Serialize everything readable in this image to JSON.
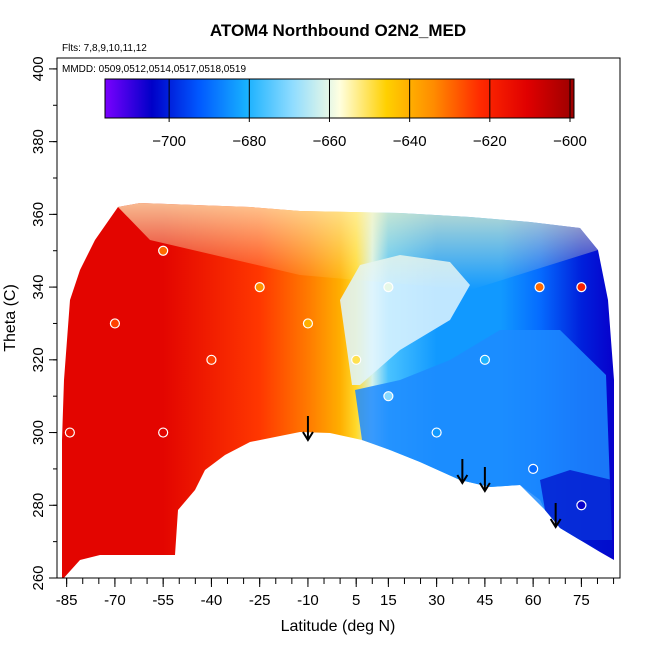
{
  "chart_data": {
    "type": "heatmap",
    "title": "ATOM4 Northbound O2N2_MED",
    "flights_note": "Flts: 7,8,9,10,11,12",
    "dates_note": "MMDD: 0509,0512,0514,0517,0518,0519",
    "xlabel": "Latitude (deg N)",
    "ylabel": "Theta (C)",
    "xlim": [
      -88,
      87
    ],
    "ylim": [
      260,
      403
    ],
    "xticks": [
      -85,
      -70,
      -55,
      -40,
      -25,
      -10,
      5,
      15,
      30,
      45,
      60,
      75
    ],
    "yticks": [
      260,
      280,
      300,
      320,
      340,
      360,
      380,
      400
    ],
    "colorbar": {
      "range": [
        -716,
        -599
      ],
      "ticks": [
        -700,
        -680,
        -660,
        -640,
        -620,
        -600
      ],
      "colors": [
        "#7a00ff",
        "#0000c8",
        "#0058ff",
        "#17b0ff",
        "#8fdcff",
        "#ffffe0",
        "#ffd000",
        "#ff8c00",
        "#ff2a00",
        "#e00000",
        "#9c0000"
      ]
    },
    "field_samples": [
      {
        "lat": -84,
        "theta": 300,
        "value": -616
      },
      {
        "lat": -70,
        "theta": 330,
        "value": -625
      },
      {
        "lat": -55,
        "theta": 300,
        "value": -612
      },
      {
        "lat": -55,
        "theta": 350,
        "value": -630
      },
      {
        "lat": -40,
        "theta": 320,
        "value": -625
      },
      {
        "lat": -25,
        "theta": 340,
        "value": -635
      },
      {
        "lat": -10,
        "theta": 330,
        "value": -640
      },
      {
        "lat": 5,
        "theta": 320,
        "value": -650
      },
      {
        "lat": 15,
        "theta": 310,
        "value": -670
      },
      {
        "lat": 15,
        "theta": 340,
        "value": -660
      },
      {
        "lat": 30,
        "theta": 300,
        "value": -684
      },
      {
        "lat": 45,
        "theta": 320,
        "value": -680
      },
      {
        "lat": 60,
        "theta": 290,
        "value": -690
      },
      {
        "lat": 62,
        "theta": 340,
        "value": -630
      },
      {
        "lat": 75,
        "theta": 280,
        "value": -705
      },
      {
        "lat": 75,
        "theta": 340,
        "value": -620
      }
    ],
    "profile_arrows_lat": [
      -10,
      38,
      45,
      67
    ]
  }
}
